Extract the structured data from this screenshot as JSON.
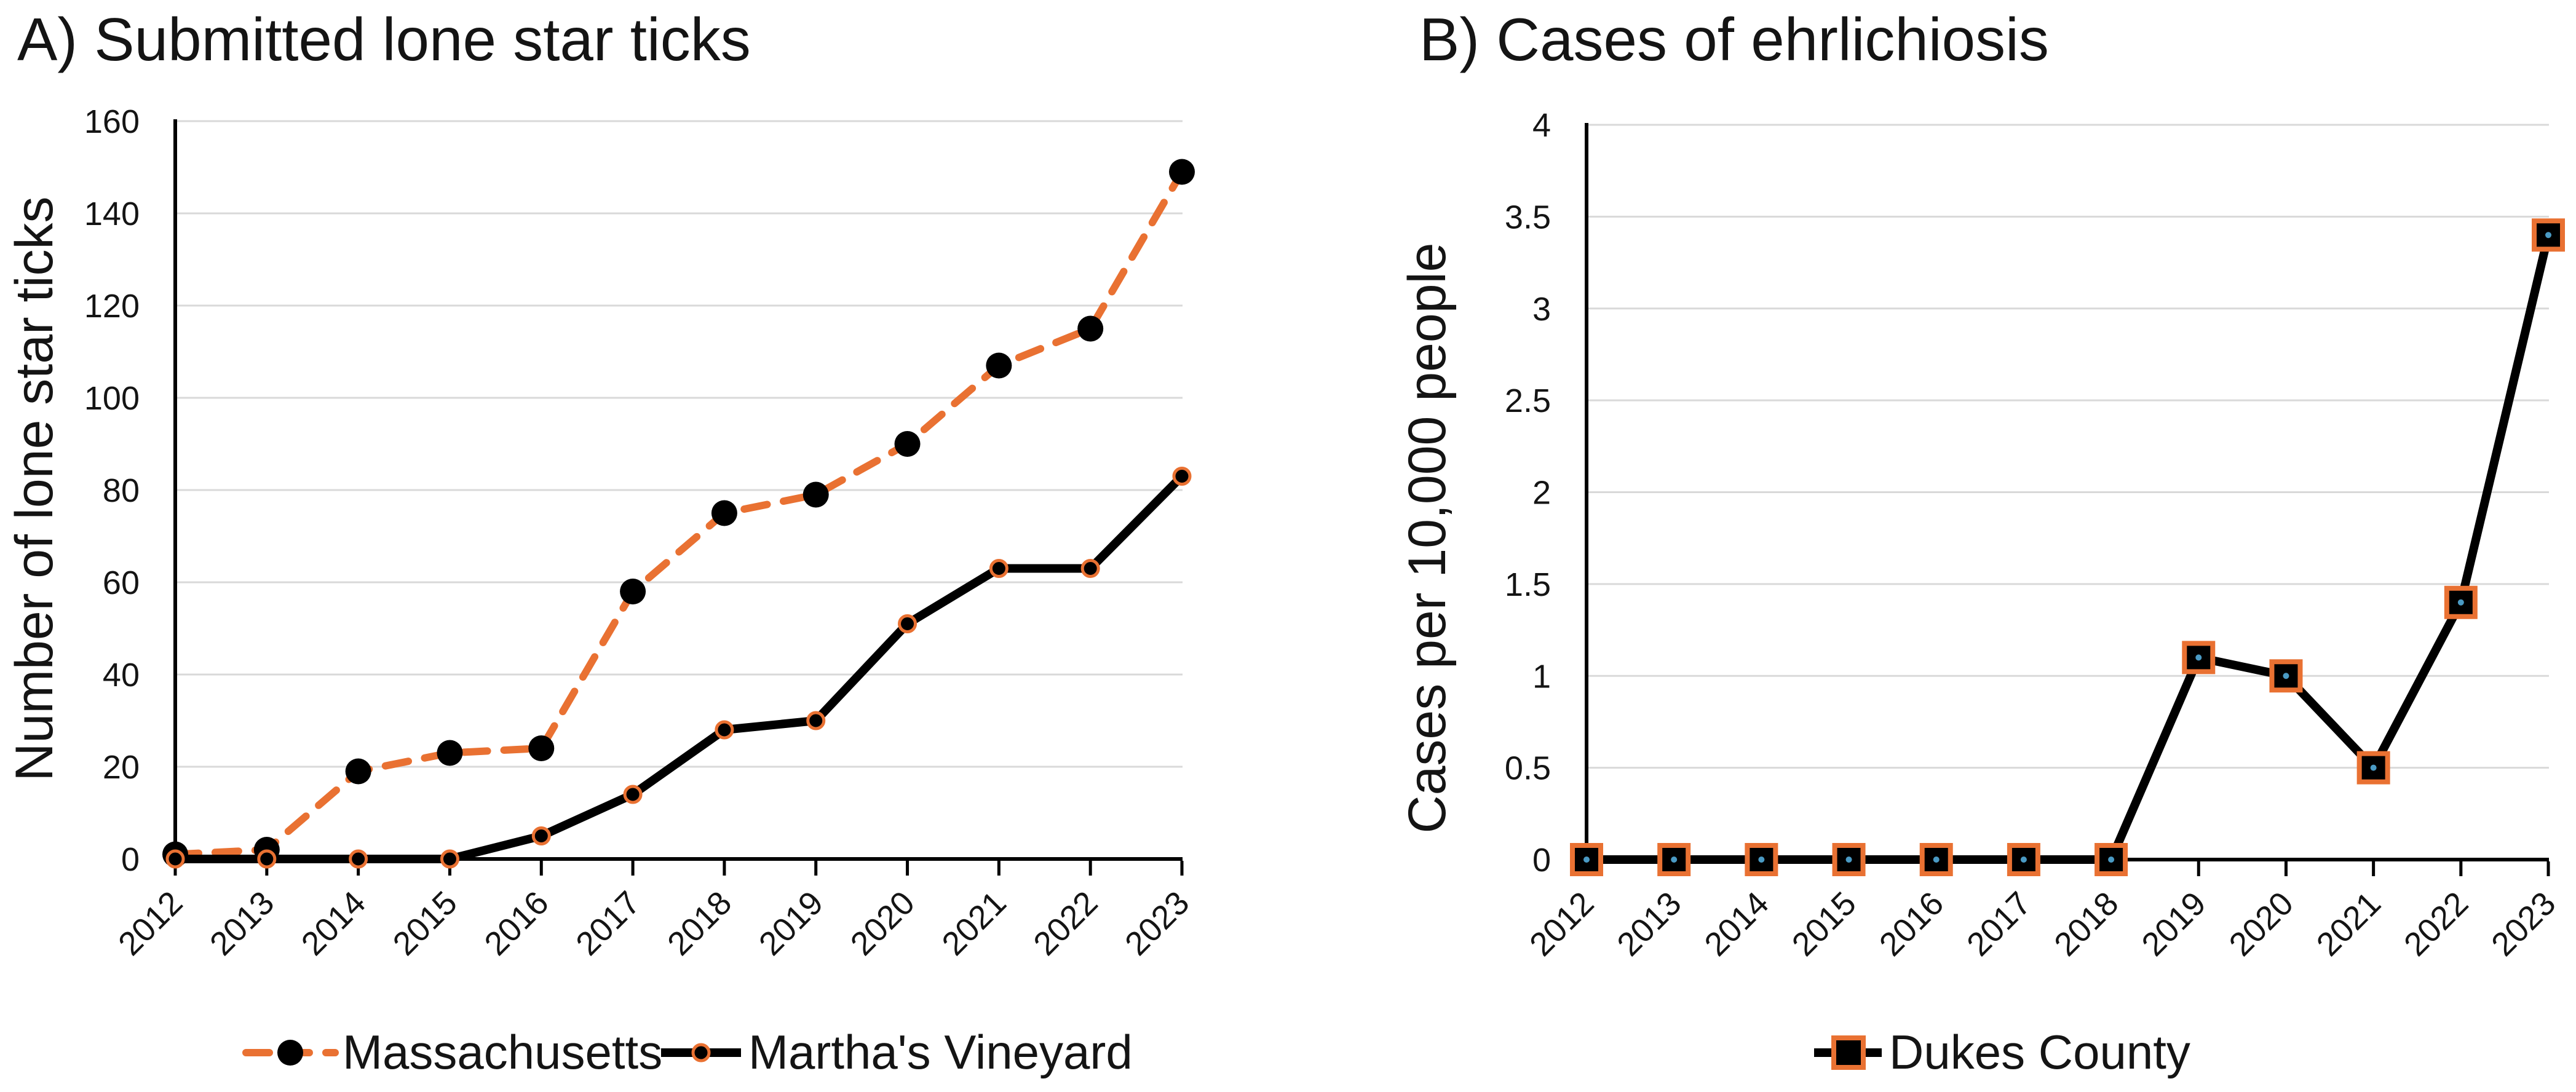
{
  "palette": {
    "orange": "#E97132",
    "black": "#000000",
    "gridline": "#D9D9D9",
    "text": "#141414",
    "marker_center_dot": "#4A9AC4"
  },
  "chart_data": [
    {
      "type": "line",
      "title": "A) Submitted lone star ticks",
      "xlabel": "",
      "ylabel": "Number of lone star ticks",
      "categories": [
        "2012",
        "2013",
        "2014",
        "2015",
        "2016",
        "2017",
        "2018",
        "2019",
        "2020",
        "2021",
        "2022",
        "2023"
      ],
      "series": [
        {
          "name": "Massachusetts",
          "values": [
            1,
            2,
            19,
            23,
            24,
            58,
            75,
            79,
            90,
            107,
            115,
            149
          ],
          "line": "dashed",
          "color": "#E97132",
          "marker": "large-black-circle"
        },
        {
          "name": "Martha's Vineyard",
          "values": [
            0,
            0,
            0,
            0,
            5,
            14,
            28,
            30,
            51,
            63,
            63,
            83
          ],
          "line": "solid",
          "color": "#000000",
          "marker": "small-black-circle-orange-ring"
        }
      ],
      "ylim": [
        0,
        160
      ],
      "ytick_step": 20,
      "ytick_labels": [
        "0",
        "20",
        "40",
        "60",
        "80",
        "100",
        "120",
        "140",
        "160"
      ],
      "grid": "horizontal",
      "legend_position": "bottom"
    },
    {
      "type": "line",
      "title": "B) Cases of ehrlichiosis",
      "xlabel": "",
      "ylabel": "Cases per 10,000 people",
      "categories": [
        "2012",
        "2013",
        "2014",
        "2015",
        "2016",
        "2017",
        "2018",
        "2019",
        "2020",
        "2021",
        "2022",
        "2023"
      ],
      "series": [
        {
          "name": "Dukes County",
          "values": [
            0,
            0,
            0,
            0,
            0,
            0,
            0,
            1.1,
            1,
            0.5,
            1.4,
            3.4
          ],
          "line": "solid",
          "color": "#000000",
          "marker": "black-square-orange-ring"
        }
      ],
      "ylim": [
        0,
        4
      ],
      "ytick_step": 0.5,
      "ytick_labels": [
        "0",
        "0.5",
        "1",
        "1.5",
        "2",
        "2.5",
        "3",
        "3.5",
        "4"
      ],
      "grid": "horizontal",
      "legend_position": "bottom"
    }
  ]
}
